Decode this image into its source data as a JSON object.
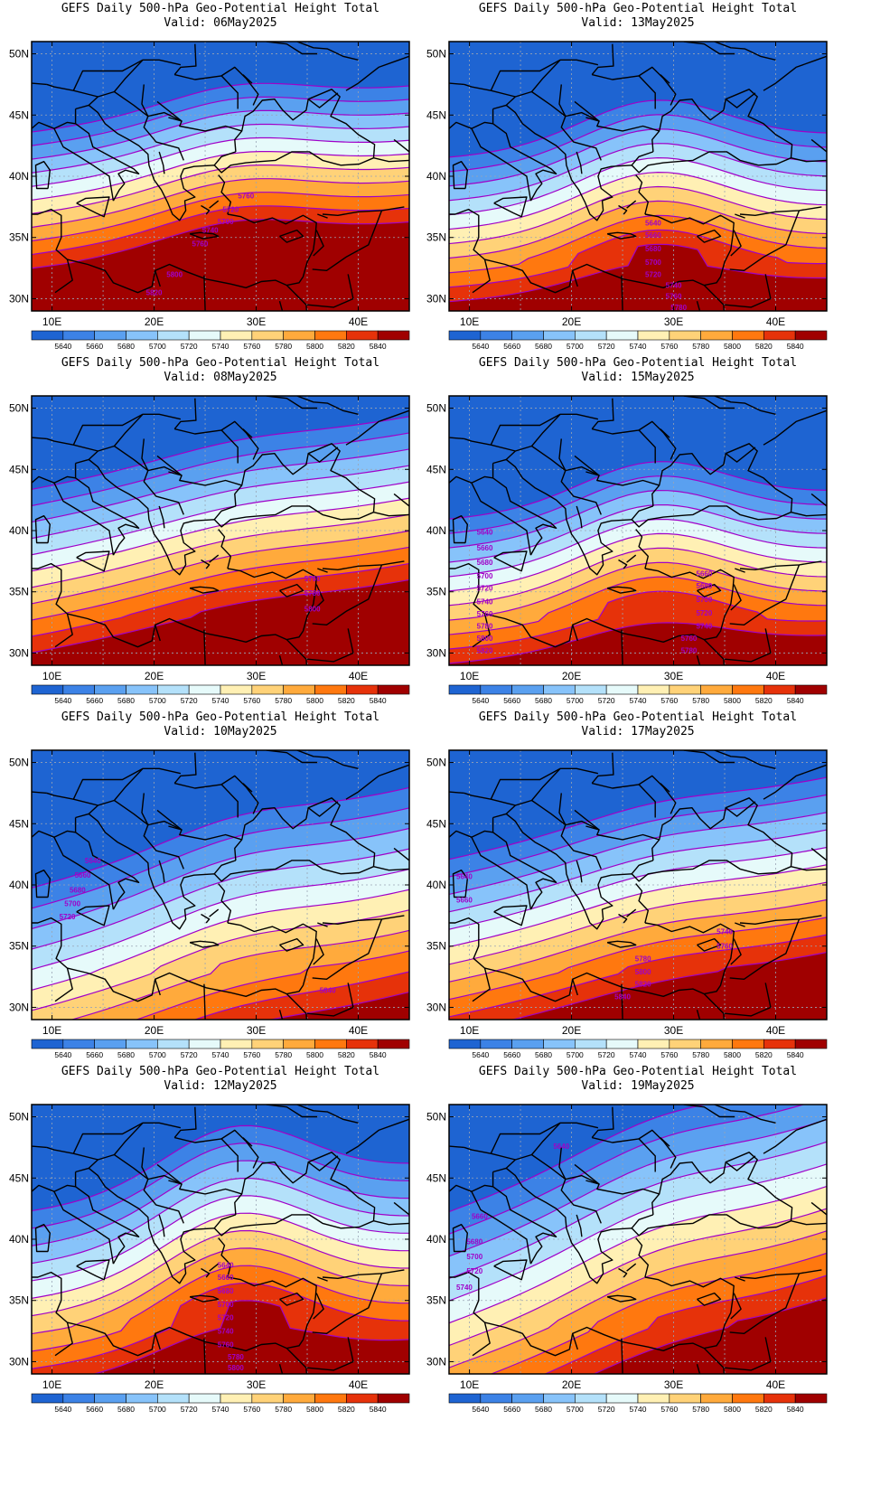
{
  "figure": {
    "panel_title": "GEFS Daily 500-hPa Geo-Potential Height Total",
    "valid_prefix": "Valid:",
    "lat_ticks": [
      "30N",
      "35N",
      "40N",
      "45N",
      "50N"
    ],
    "lon_ticks": [
      "10E",
      "20E",
      "30E",
      "40E"
    ],
    "colorbar": {
      "labels": [
        "5640",
        "5660",
        "5680",
        "5700",
        "5720",
        "5740",
        "5760",
        "5780",
        "5800",
        "5820",
        "5840"
      ],
      "colors": [
        "#1e64d2",
        "#3c82e6",
        "#5aa0f0",
        "#87c3fa",
        "#b4e1fa",
        "#e6fafa",
        "#fff0b4",
        "#ffd278",
        "#ffaa3c",
        "#ff780f",
        "#e6320a",
        "#a00000"
      ]
    },
    "contour_color": "#a000c8",
    "map_extent": {
      "lon": [
        8,
        45
      ],
      "lat": [
        29,
        51
      ]
    }
  },
  "panels": [
    {
      "date": "06May2025",
      "base": 5690,
      "slope": 18,
      "amp": 1.4,
      "phase": 0.2,
      "tilt": 0.1,
      "labels": [
        {
          "t": "5760",
          "lon": 29,
          "lat": 38.4
        },
        {
          "t": "5720",
          "lon": 27.5,
          "lat": 37.3
        },
        {
          "t": "5700",
          "lon": 27,
          "lat": 36.3
        },
        {
          "t": "5740",
          "lon": 25.5,
          "lat": 35.6
        },
        {
          "t": "5760",
          "lon": 24.5,
          "lat": 34.5
        },
        {
          "t": "5800",
          "lon": 22,
          "lat": 32.0
        },
        {
          "t": "5820",
          "lon": 20,
          "lat": 30.5
        }
      ]
    },
    {
      "date": "08May2025",
      "base": 5680,
      "slope": 15,
      "amp": 0.6,
      "phase": 0.0,
      "tilt": 0.16,
      "labels": [
        {
          "t": "5760",
          "lon": 35.5,
          "lat": 36.1
        },
        {
          "t": "5780",
          "lon": 35.5,
          "lat": 34.9
        },
        {
          "t": "5800",
          "lon": 35.5,
          "lat": 33.6
        }
      ]
    },
    {
      "date": "10May2025",
      "base": 5630,
      "slope": 12,
      "amp": 0.8,
      "phase": 0.1,
      "tilt": 0.22,
      "labels": [
        {
          "t": "5640",
          "lon": 14,
          "lat": 42.0
        },
        {
          "t": "5660",
          "lon": 13,
          "lat": 40.8
        },
        {
          "t": "5680",
          "lon": 12.5,
          "lat": 39.6
        },
        {
          "t": "5700",
          "lon": 12,
          "lat": 38.5
        },
        {
          "t": "5720",
          "lon": 11.5,
          "lat": 37.4
        },
        {
          "t": "5840",
          "lon": 37,
          "lat": 31.4
        }
      ]
    },
    {
      "date": "12May2025",
      "base": 5660,
      "slope": 14,
      "amp": 3.5,
      "phase": 0.0,
      "tilt": 0.1,
      "labels": [
        {
          "t": "5640",
          "lon": 27,
          "lat": 37.9
        },
        {
          "t": "5660",
          "lon": 27,
          "lat": 36.9
        },
        {
          "t": "5680",
          "lon": 27,
          "lat": 35.8
        },
        {
          "t": "5700",
          "lon": 27,
          "lat": 34.7
        },
        {
          "t": "5720",
          "lon": 27,
          "lat": 33.6
        },
        {
          "t": "5740",
          "lon": 27,
          "lat": 32.5
        },
        {
          "t": "5760",
          "lon": 27,
          "lat": 31.4
        },
        {
          "t": "5780",
          "lon": 28,
          "lat": 30.4
        },
        {
          "t": "5800",
          "lon": 28,
          "lat": 29.5
        }
      ]
    },
    {
      "date": "13May2025",
      "base": 5650,
      "slope": 17,
      "amp": 3.5,
      "phase": -0.1,
      "tilt": 0.05,
      "labels": [
        {
          "t": "5640",
          "lon": 28,
          "lat": 36.2
        },
        {
          "t": "5660",
          "lon": 28,
          "lat": 35.2
        },
        {
          "t": "5680",
          "lon": 28,
          "lat": 34.1
        },
        {
          "t": "5700",
          "lon": 28,
          "lat": 33.0
        },
        {
          "t": "5720",
          "lon": 28,
          "lat": 32.0
        },
        {
          "t": "5740",
          "lon": 30,
          "lat": 31.1
        },
        {
          "t": "5760",
          "lon": 30,
          "lat": 30.2
        },
        {
          "t": "5780",
          "lon": 30.5,
          "lat": 29.3
        }
      ]
    },
    {
      "date": "15May2025",
      "base": 5640,
      "slope": 17,
      "amp": 3.0,
      "phase": 0.0,
      "tilt": 0.06,
      "labels": [
        {
          "t": "5640",
          "lon": 11.5,
          "lat": 39.9
        },
        {
          "t": "5660",
          "lon": 11.5,
          "lat": 38.6
        },
        {
          "t": "5680",
          "lon": 11.5,
          "lat": 37.4
        },
        {
          "t": "5700",
          "lon": 11.5,
          "lat": 36.3
        },
        {
          "t": "5720",
          "lon": 11.5,
          "lat": 35.3
        },
        {
          "t": "5740",
          "lon": 11.5,
          "lat": 34.2
        },
        {
          "t": "5760",
          "lon": 11.5,
          "lat": 33.2
        },
        {
          "t": "5780",
          "lon": 11.5,
          "lat": 32.2
        },
        {
          "t": "5800",
          "lon": 11.5,
          "lat": 31.2
        },
        {
          "t": "5820",
          "lon": 11.5,
          "lat": 30.2
        },
        {
          "t": "5660",
          "lon": 33,
          "lat": 36.5
        },
        {
          "t": "5680",
          "lon": 33,
          "lat": 35.5
        },
        {
          "t": "5700",
          "lon": 33,
          "lat": 34.4
        },
        {
          "t": "5720",
          "lon": 33,
          "lat": 33.3
        },
        {
          "t": "5740",
          "lon": 33,
          "lat": 32.2
        },
        {
          "t": "5760",
          "lon": 31.5,
          "lat": 31.2
        },
        {
          "t": "5780",
          "lon": 31.5,
          "lat": 30.2
        }
      ]
    },
    {
      "date": "17May2025",
      "base": 5660,
      "slope": 14,
      "amp": 0.7,
      "phase": 0.0,
      "tilt": 0.18,
      "labels": [
        {
          "t": "5640",
          "lon": 9.5,
          "lat": 40.7
        },
        {
          "t": "5660",
          "lon": 9.5,
          "lat": 38.8
        },
        {
          "t": "5740",
          "lon": 35,
          "lat": 36.2
        },
        {
          "t": "5760",
          "lon": 35,
          "lat": 35.0
        },
        {
          "t": "5780",
          "lon": 27,
          "lat": 34.0
        },
        {
          "t": "5800",
          "lon": 27,
          "lat": 32.9
        },
        {
          "t": "5820",
          "lon": 27,
          "lat": 31.9
        },
        {
          "t": "5840",
          "lon": 25,
          "lat": 30.9
        }
      ]
    },
    {
      "date": "19May2025",
      "base": 5660,
      "slope": 11,
      "amp": 0.9,
      "phase": 0.0,
      "tilt": 0.3,
      "labels": [
        {
          "t": "5640",
          "lon": 19,
          "lat": 47.6
        },
        {
          "t": "5660",
          "lon": 11,
          "lat": 41.9
        },
        {
          "t": "5680",
          "lon": 10.5,
          "lat": 39.8
        },
        {
          "t": "5700",
          "lon": 10.5,
          "lat": 38.6
        },
        {
          "t": "5720",
          "lon": 10.5,
          "lat": 37.4
        },
        {
          "t": "5740",
          "lon": 9.5,
          "lat": 36.1
        }
      ]
    }
  ]
}
